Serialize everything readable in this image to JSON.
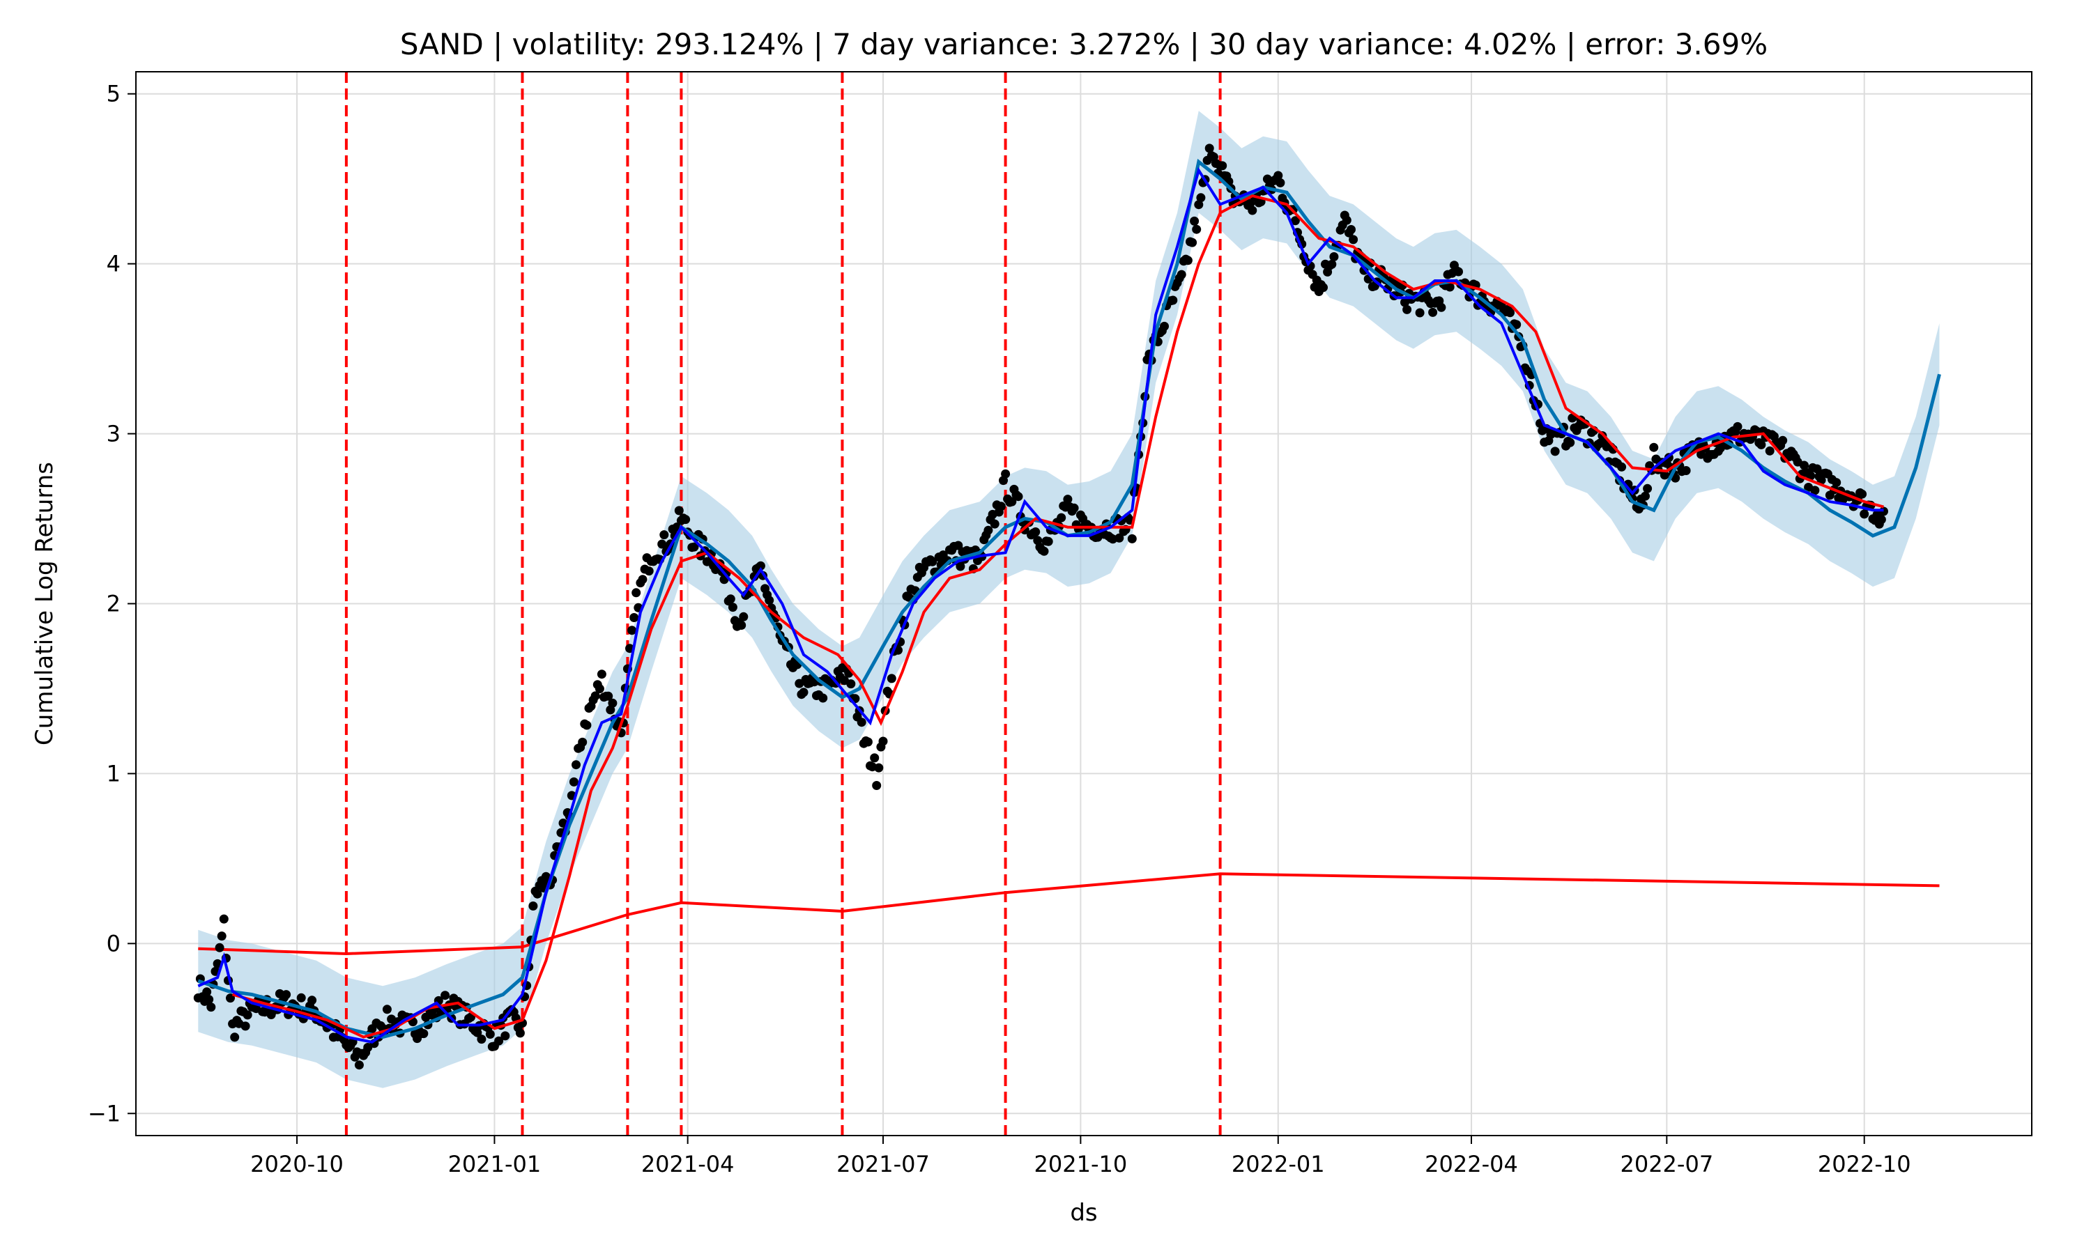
{
  "chart_data": {
    "type": "line",
    "title": "SAND | volatility: 293.124% | 7 day variance: 3.272% | 30 day variance: 4.02% | error: 3.69%",
    "xlabel": "ds",
    "ylabel": "Cumulative Log Returns",
    "x_range": [
      "2020-07-18",
      "2022-12-18"
    ],
    "ylim": [
      -1.13,
      5.13
    ],
    "x_ticks": [
      {
        "date": "2020-10-01",
        "label": "2020-10"
      },
      {
        "date": "2021-01-01",
        "label": "2021-01"
      },
      {
        "date": "2021-04-01",
        "label": "2021-04"
      },
      {
        "date": "2021-07-01",
        "label": "2021-07"
      },
      {
        "date": "2021-10-01",
        "label": "2021-10"
      },
      {
        "date": "2022-01-01",
        "label": "2022-01"
      },
      {
        "date": "2022-04-01",
        "label": "2022-04"
      },
      {
        "date": "2022-07-01",
        "label": "2022-07"
      },
      {
        "date": "2022-10-01",
        "label": "2022-10"
      }
    ],
    "y_ticks": [
      {
        "value": -1,
        "label": "−1"
      },
      {
        "value": 0,
        "label": "0"
      },
      {
        "value": 1,
        "label": "1"
      },
      {
        "value": 2,
        "label": "2"
      },
      {
        "value": 3,
        "label": "3"
      },
      {
        "value": 4,
        "label": "4"
      },
      {
        "value": 5,
        "label": "5"
      }
    ],
    "grid": true,
    "colors": {
      "observed": "#000000",
      "forecast": "#0072B2",
      "band": "#a6cde4",
      "trend": "#ff0000",
      "changepoint": "#ff0000",
      "short_ma": "#0000ff",
      "long_ma": "#ff0000"
    },
    "changepoints": [
      "2020-10-24",
      "2021-01-14",
      "2021-03-04",
      "2021-03-29",
      "2021-06-12",
      "2021-08-27",
      "2021-12-05"
    ],
    "trend": {
      "x": [
        "2020-08-16",
        "2020-10-24",
        "2021-01-14",
        "2021-03-04",
        "2021-03-29",
        "2021-06-12",
        "2021-08-27",
        "2021-12-05",
        "2022-11-05"
      ],
      "y": [
        -0.03,
        -0.06,
        -0.02,
        0.17,
        0.24,
        0.19,
        0.3,
        0.41,
        0.34
      ]
    },
    "forecast": {
      "x": [
        "2020-08-16",
        "2020-08-30",
        "2020-09-10",
        "2020-09-25",
        "2020-10-10",
        "2020-10-24",
        "2020-11-10",
        "2020-11-25",
        "2020-12-10",
        "2020-12-25",
        "2021-01-05",
        "2021-01-14",
        "2021-01-25",
        "2021-02-05",
        "2021-02-15",
        "2021-02-25",
        "2021-03-04",
        "2021-03-15",
        "2021-03-29",
        "2021-04-10",
        "2021-04-20",
        "2021-05-01",
        "2021-05-10",
        "2021-05-20",
        "2021-06-01",
        "2021-06-12",
        "2021-06-20",
        "2021-07-01",
        "2021-07-10",
        "2021-07-20",
        "2021-08-01",
        "2021-08-15",
        "2021-08-27",
        "2021-09-05",
        "2021-09-15",
        "2021-09-25",
        "2021-10-05",
        "2021-10-15",
        "2021-10-25",
        "2021-11-05",
        "2021-11-15",
        "2021-11-25",
        "2021-12-05",
        "2021-12-15",
        "2021-12-25",
        "2022-01-05",
        "2022-01-15",
        "2022-01-25",
        "2022-02-05",
        "2022-02-15",
        "2022-02-25",
        "2022-03-05",
        "2022-03-15",
        "2022-03-25",
        "2022-04-05",
        "2022-04-15",
        "2022-04-25",
        "2022-05-05",
        "2022-05-15",
        "2022-05-25",
        "2022-06-05",
        "2022-06-15",
        "2022-06-25",
        "2022-07-05",
        "2022-07-15",
        "2022-07-25",
        "2022-08-05",
        "2022-08-15",
        "2022-08-25",
        "2022-09-05",
        "2022-09-15",
        "2022-09-25",
        "2022-10-05",
        "2022-10-15",
        "2022-10-25",
        "2022-11-05"
      ],
      "y": [
        -0.22,
        -0.28,
        -0.3,
        -0.35,
        -0.4,
        -0.5,
        -0.55,
        -0.5,
        -0.42,
        -0.35,
        -0.3,
        -0.2,
        0.3,
        0.7,
        1.0,
        1.3,
        1.45,
        1.9,
        2.45,
        2.35,
        2.25,
        2.1,
        1.9,
        1.7,
        1.55,
        1.45,
        1.5,
        1.75,
        1.95,
        2.1,
        2.25,
        2.3,
        2.45,
        2.5,
        2.48,
        2.4,
        2.42,
        2.48,
        2.7,
        3.6,
        4.0,
        4.6,
        4.5,
        4.38,
        4.45,
        4.42,
        4.25,
        4.1,
        4.05,
        3.95,
        3.85,
        3.8,
        3.88,
        3.9,
        3.8,
        3.7,
        3.55,
        3.2,
        3.0,
        2.95,
        2.8,
        2.6,
        2.55,
        2.8,
        2.95,
        2.98,
        2.9,
        2.8,
        2.72,
        2.65,
        2.55,
        2.48,
        2.4,
        2.45,
        2.8,
        3.35
      ],
      "band_halfwidth": 0.3
    },
    "short_ma": {
      "x": [
        "2020-08-16",
        "2020-08-25",
        "2020-08-28",
        "2020-09-01",
        "2020-09-10",
        "2020-09-25",
        "2020-10-10",
        "2020-10-24",
        "2020-11-05",
        "2020-11-20",
        "2020-12-05",
        "2020-12-15",
        "2020-12-25",
        "2021-01-05",
        "2021-01-14",
        "2021-01-25",
        "2021-02-05",
        "2021-02-12",
        "2021-02-20",
        "2021-03-01",
        "2021-03-10",
        "2021-03-20",
        "2021-03-29",
        "2021-04-10",
        "2021-04-20",
        "2021-04-27",
        "2021-05-05",
        "2021-05-15",
        "2021-05-25",
        "2021-06-05",
        "2021-06-15",
        "2021-06-25",
        "2021-07-05",
        "2021-07-15",
        "2021-07-25",
        "2021-08-05",
        "2021-08-15",
        "2021-08-27",
        "2021-09-05",
        "2021-09-15",
        "2021-09-25",
        "2021-10-05",
        "2021-10-15",
        "2021-10-25",
        "2021-11-05",
        "2021-11-15",
        "2021-11-25",
        "2021-12-05",
        "2021-12-15",
        "2021-12-25",
        "2022-01-05",
        "2022-01-15",
        "2022-01-25",
        "2022-02-05",
        "2022-02-15",
        "2022-02-25",
        "2022-03-05",
        "2022-03-15",
        "2022-03-25",
        "2022-04-05",
        "2022-04-15",
        "2022-04-25",
        "2022-05-05",
        "2022-05-15",
        "2022-05-25",
        "2022-06-05",
        "2022-06-15",
        "2022-06-25",
        "2022-07-05",
        "2022-07-15",
        "2022-07-25",
        "2022-08-05",
        "2022-08-15",
        "2022-08-25",
        "2022-09-05",
        "2022-09-15",
        "2022-09-25",
        "2022-10-05",
        "2022-10-10"
      ],
      "y": [
        -0.25,
        -0.2,
        -0.08,
        -0.28,
        -0.35,
        -0.4,
        -0.45,
        -0.55,
        -0.58,
        -0.45,
        -0.35,
        -0.48,
        -0.48,
        -0.45,
        -0.3,
        0.3,
        0.75,
        1.05,
        1.3,
        1.35,
        1.95,
        2.25,
        2.45,
        2.3,
        2.15,
        2.05,
        2.2,
        2.0,
        1.7,
        1.6,
        1.45,
        1.3,
        1.7,
        2.0,
        2.15,
        2.25,
        2.28,
        2.3,
        2.6,
        2.45,
        2.4,
        2.4,
        2.45,
        2.55,
        3.7,
        4.1,
        4.55,
        4.35,
        4.4,
        4.45,
        4.3,
        4.0,
        4.15,
        4.05,
        3.9,
        3.8,
        3.8,
        3.9,
        3.9,
        3.75,
        3.65,
        3.35,
        3.05,
        3.0,
        2.95,
        2.8,
        2.65,
        2.8,
        2.9,
        2.95,
        3.0,
        2.95,
        2.78,
        2.7,
        2.65,
        2.6,
        2.58,
        2.55,
        2.55
      ]
    },
    "long_ma": {
      "x": [
        "2020-09-01",
        "2020-09-15",
        "2020-10-01",
        "2020-10-15",
        "2020-11-01",
        "2020-11-15",
        "2020-12-01",
        "2020-12-15",
        "2021-01-01",
        "2021-01-14",
        "2021-01-25",
        "2021-02-05",
        "2021-02-15",
        "2021-02-25",
        "2021-03-04",
        "2021-03-15",
        "2021-03-29",
        "2021-04-10",
        "2021-04-25",
        "2021-05-10",
        "2021-05-25",
        "2021-06-10",
        "2021-06-20",
        "2021-06-30",
        "2021-07-10",
        "2021-07-20",
        "2021-08-01",
        "2021-08-15",
        "2021-08-27",
        "2021-09-10",
        "2021-09-25",
        "2021-10-10",
        "2021-10-25",
        "2021-11-05",
        "2021-11-15",
        "2021-11-25",
        "2021-12-05",
        "2021-12-20",
        "2022-01-05",
        "2022-01-20",
        "2022-02-05",
        "2022-02-20",
        "2022-03-05",
        "2022-03-20",
        "2022-04-05",
        "2022-04-20",
        "2022-05-01",
        "2022-05-15",
        "2022-06-01",
        "2022-06-15",
        "2022-07-01",
        "2022-07-15",
        "2022-08-01",
        "2022-08-15",
        "2022-09-01",
        "2022-09-15",
        "2022-10-01",
        "2022-10-10"
      ],
      "y": [
        -0.3,
        -0.35,
        -0.4,
        -0.45,
        -0.55,
        -0.5,
        -0.38,
        -0.35,
        -0.5,
        -0.45,
        -0.1,
        0.4,
        0.9,
        1.15,
        1.4,
        1.85,
        2.25,
        2.3,
        2.15,
        1.95,
        1.8,
        1.7,
        1.55,
        1.3,
        1.6,
        1.95,
        2.15,
        2.2,
        2.35,
        2.5,
        2.45,
        2.45,
        2.45,
        3.1,
        3.6,
        4.0,
        4.3,
        4.4,
        4.35,
        4.15,
        4.1,
        3.95,
        3.85,
        3.9,
        3.85,
        3.75,
        3.6,
        3.15,
        3.0,
        2.8,
        2.78,
        2.9,
        2.98,
        3.0,
        2.75,
        2.68,
        2.6,
        2.57
      ]
    },
    "observed": {
      "anchors_x": [
        "2020-08-16",
        "2020-08-22",
        "2020-08-28",
        "2020-09-01",
        "2020-09-10",
        "2020-09-25",
        "2020-10-10",
        "2020-10-24",
        "2020-10-30",
        "2020-11-10",
        "2020-11-25",
        "2020-12-10",
        "2020-12-20",
        "2021-01-01",
        "2021-01-08",
        "2021-01-14",
        "2021-01-20",
        "2021-01-28",
        "2021-02-05",
        "2021-02-12",
        "2021-02-20",
        "2021-03-01",
        "2021-03-08",
        "2021-03-15",
        "2021-03-22",
        "2021-03-29",
        "2021-04-05",
        "2021-04-15",
        "2021-04-25",
        "2021-05-05",
        "2021-05-15",
        "2021-05-25",
        "2021-06-05",
        "2021-06-15",
        "2021-06-22",
        "2021-06-28",
        "2021-07-05",
        "2021-07-12",
        "2021-07-20",
        "2021-08-01",
        "2021-08-15",
        "2021-08-27",
        "2021-09-05",
        "2021-09-15",
        "2021-09-25",
        "2021-10-05",
        "2021-10-15",
        "2021-10-25",
        "2021-11-01",
        "2021-11-10",
        "2021-11-17",
        "2021-11-25",
        "2021-12-01",
        "2021-12-10",
        "2021-12-20",
        "2022-01-01",
        "2022-01-10",
        "2022-01-20",
        "2022-02-01",
        "2022-02-10",
        "2022-02-20",
        "2022-03-01",
        "2022-03-15",
        "2022-03-25",
        "2022-04-05",
        "2022-04-15",
        "2022-04-25",
        "2022-05-05",
        "2022-05-12",
        "2022-05-20",
        "2022-06-01",
        "2022-06-10",
        "2022-06-18",
        "2022-06-25",
        "2022-07-05",
        "2022-07-15",
        "2022-07-25",
        "2022-08-05",
        "2022-08-15",
        "2022-08-25",
        "2022-09-05",
        "2022-09-15",
        "2022-09-25",
        "2022-10-05",
        "2022-10-10"
      ],
      "anchors_y": [
        -0.25,
        -0.35,
        0.1,
        -0.5,
        -0.4,
        -0.35,
        -0.4,
        -0.6,
        -0.68,
        -0.45,
        -0.5,
        -0.35,
        -0.45,
        -0.55,
        -0.45,
        -0.5,
        0.3,
        0.4,
        0.8,
        1.3,
        1.55,
        1.25,
        2.0,
        2.3,
        2.35,
        2.5,
        2.35,
        2.25,
        1.9,
        2.2,
        1.75,
        1.5,
        1.5,
        1.6,
        1.2,
        1.0,
        1.6,
        2.0,
        2.2,
        2.3,
        2.25,
        2.7,
        2.5,
        2.35,
        2.55,
        2.45,
        2.45,
        2.45,
        3.4,
        3.7,
        3.9,
        4.3,
        4.7,
        4.4,
        4.35,
        4.5,
        4.2,
        3.85,
        4.25,
        3.95,
        3.9,
        3.8,
        3.75,
        3.95,
        3.8,
        3.75,
        3.5,
        3.0,
        2.95,
        3.05,
        2.95,
        2.75,
        2.55,
        2.85,
        2.8,
        2.9,
        2.95,
        3.0,
        2.95,
        2.9,
        2.75,
        2.7,
        2.65,
        2.55,
        2.52
      ],
      "noise": 0.07
    }
  }
}
